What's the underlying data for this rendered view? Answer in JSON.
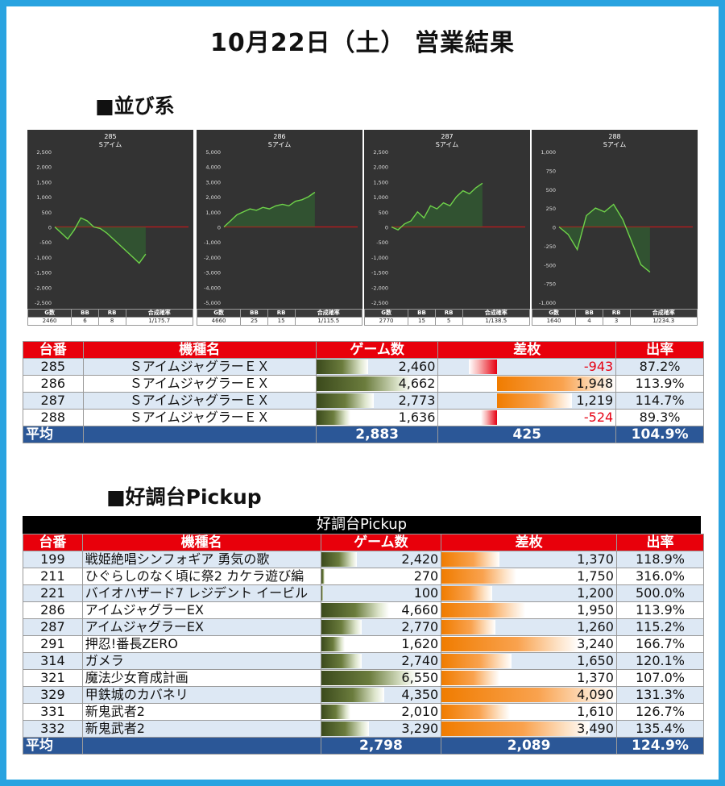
{
  "title": "10月22日（土） 営業結果",
  "sections": {
    "narabi": "■並び系",
    "pickup": "■好調台Pickup"
  },
  "colors": {
    "frame": "#29a3e0",
    "header_red": "#e8000b",
    "avg_blue": "#2b5797"
  },
  "charts": [
    {
      "number": "285",
      "model": "Sアイム",
      "chart_data": {
        "type": "line",
        "ylim": [
          -2500,
          2500
        ],
        "yticks": [
          "2,500",
          "2,000",
          "1,500",
          "1,000",
          "500",
          "0",
          "-500",
          "-1,000",
          "-1,500",
          "-2,000",
          "-2,500"
        ],
        "values": [
          0,
          -200,
          -400,
          -100,
          300,
          200,
          0,
          -50,
          -200,
          -400,
          -600,
          -800,
          -1000,
          -1200,
          -900
        ]
      },
      "stats": {
        "headers": [
          "G数",
          "BB",
          "RB",
          "合成確率"
        ],
        "values": [
          "2460",
          "6",
          "8",
          "1/175.7"
        ]
      }
    },
    {
      "number": "286",
      "model": "Sアイム",
      "chart_data": {
        "type": "line",
        "ylim": [
          -5000,
          5000
        ],
        "yticks": [
          "5,000",
          "4,000",
          "3,000",
          "2,000",
          "1,000",
          "0",
          "-1,000",
          "-2,000",
          "-3,000",
          "-4,000",
          "-5,000"
        ],
        "values": [
          0,
          400,
          800,
          1000,
          1200,
          1100,
          1300,
          1200,
          1400,
          1500,
          1400,
          1700,
          1800,
          2000,
          2300
        ]
      },
      "stats": {
        "headers": [
          "G数",
          "BB",
          "RB",
          "合成確率"
        ],
        "values": [
          "4660",
          "25",
          "15",
          "1/115.5"
        ]
      }
    },
    {
      "number": "287",
      "model": "Sアイム",
      "chart_data": {
        "type": "line",
        "ylim": [
          -2500,
          2500
        ],
        "yticks": [
          "2,500",
          "2,000",
          "1,500",
          "1,000",
          "500",
          "0",
          "-500",
          "-1,000",
          "-1,500",
          "-2,000",
          "-2,500"
        ],
        "values": [
          0,
          -100,
          100,
          200,
          500,
          300,
          700,
          600,
          800,
          700,
          1000,
          1200,
          1100,
          1300,
          1450
        ]
      },
      "stats": {
        "headers": [
          "G数",
          "BB",
          "RB",
          "合成確率"
        ],
        "values": [
          "2770",
          "15",
          "5",
          "1/138.5"
        ]
      }
    },
    {
      "number": "288",
      "model": "Sアイム",
      "chart_data": {
        "type": "line",
        "ylim": [
          -1000,
          1000
        ],
        "yticks": [
          "1,000",
          "750",
          "500",
          "250",
          "0",
          "-250",
          "-500",
          "-750",
          "-1,000"
        ],
        "values": [
          0,
          -100,
          -300,
          150,
          250,
          200,
          300,
          100,
          -200,
          -500,
          -600
        ]
      },
      "stats": {
        "headers": [
          "G数",
          "BB",
          "RB",
          "合成確率"
        ],
        "values": [
          "1640",
          "4",
          "3",
          "1/234.3"
        ]
      }
    }
  ],
  "table1": {
    "headers": [
      "台番",
      "機種名",
      "ゲーム数",
      "差枚",
      "出率"
    ],
    "rows": [
      {
        "no": "285",
        "name": "ＳアイムジャグラーＥＸ",
        "games": "2,460",
        "games_frac": 0.53,
        "diff": "-943",
        "diff_frac": 0.48,
        "diff_sign": "neg",
        "rate": "87.2%"
      },
      {
        "no": "286",
        "name": "ＳアイムジャグラーＥＸ",
        "games": "4,662",
        "games_frac": 1.0,
        "diff": "1,948",
        "diff_frac": 1.0,
        "diff_sign": "pos",
        "rate": "113.9%"
      },
      {
        "no": "287",
        "name": "ＳアイムジャグラーＥＸ",
        "games": "2,773",
        "games_frac": 0.59,
        "diff": "1,219",
        "diff_frac": 0.63,
        "diff_sign": "pos",
        "rate": "114.7%"
      },
      {
        "no": "288",
        "name": "ＳアイムジャグラーＥＸ",
        "games": "1,636",
        "games_frac": 0.35,
        "diff": "-524",
        "diff_frac": 0.27,
        "diff_sign": "neg",
        "rate": "89.3%"
      }
    ],
    "avg": {
      "label": "平均",
      "games": "2,883",
      "diff": "425",
      "rate": "104.9%"
    }
  },
  "table2": {
    "caption": "好調台Pickup",
    "headers": [
      "台番",
      "機種名",
      "ゲーム数",
      "差枚",
      "出率"
    ],
    "rows": [
      {
        "no": "199",
        "name": "戦姫絶唱シンフォギア 勇気の歌",
        "games": "2,420",
        "games_frac": 0.37,
        "diff": "1,370",
        "diff_frac": 0.33,
        "rate": "118.9%"
      },
      {
        "no": "211",
        "name": "ひぐらしのなく頃に祭2 カケラ遊び編",
        "games": "270",
        "games_frac": 0.04,
        "diff": "1,750",
        "diff_frac": 0.43,
        "rate": "316.0%"
      },
      {
        "no": "221",
        "name": "バイオハザード7 レジデント イービル",
        "games": "100",
        "games_frac": 0.02,
        "diff": "1,200",
        "diff_frac": 0.29,
        "rate": "500.0%"
      },
      {
        "no": "286",
        "name": "アイムジャグラーEX",
        "games": "4,660",
        "games_frac": 0.71,
        "diff": "1,950",
        "diff_frac": 0.48,
        "rate": "113.9%"
      },
      {
        "no": "287",
        "name": "アイムジャグラーEX",
        "games": "2,770",
        "games_frac": 0.42,
        "diff": "1,260",
        "diff_frac": 0.31,
        "rate": "115.2%"
      },
      {
        "no": "291",
        "name": "押忍!番長ZERO",
        "games": "1,620",
        "games_frac": 0.25,
        "diff": "3,240",
        "diff_frac": 0.79,
        "rate": "166.7%"
      },
      {
        "no": "314",
        "name": "ガメラ",
        "games": "2,740",
        "games_frac": 0.42,
        "diff": "1,650",
        "diff_frac": 0.4,
        "rate": "120.1%"
      },
      {
        "no": "321",
        "name": "魔法少女育成計画",
        "games": "6,550",
        "games_frac": 1.0,
        "diff": "1,370",
        "diff_frac": 0.33,
        "rate": "107.0%"
      },
      {
        "no": "329",
        "name": "甲鉄城のカバネリ",
        "games": "4,350",
        "games_frac": 0.66,
        "diff": "4,090",
        "diff_frac": 1.0,
        "rate": "131.3%"
      },
      {
        "no": "331",
        "name": "新鬼武者2",
        "games": "2,010",
        "games_frac": 0.31,
        "diff": "1,610",
        "diff_frac": 0.39,
        "rate": "126.7%"
      },
      {
        "no": "332",
        "name": "新鬼武者2",
        "games": "3,290",
        "games_frac": 0.5,
        "diff": "3,490",
        "diff_frac": 0.85,
        "rate": "135.4%"
      }
    ],
    "avg": {
      "label": "平均",
      "games": "2,798",
      "diff": "2,089",
      "rate": "124.9%"
    }
  }
}
